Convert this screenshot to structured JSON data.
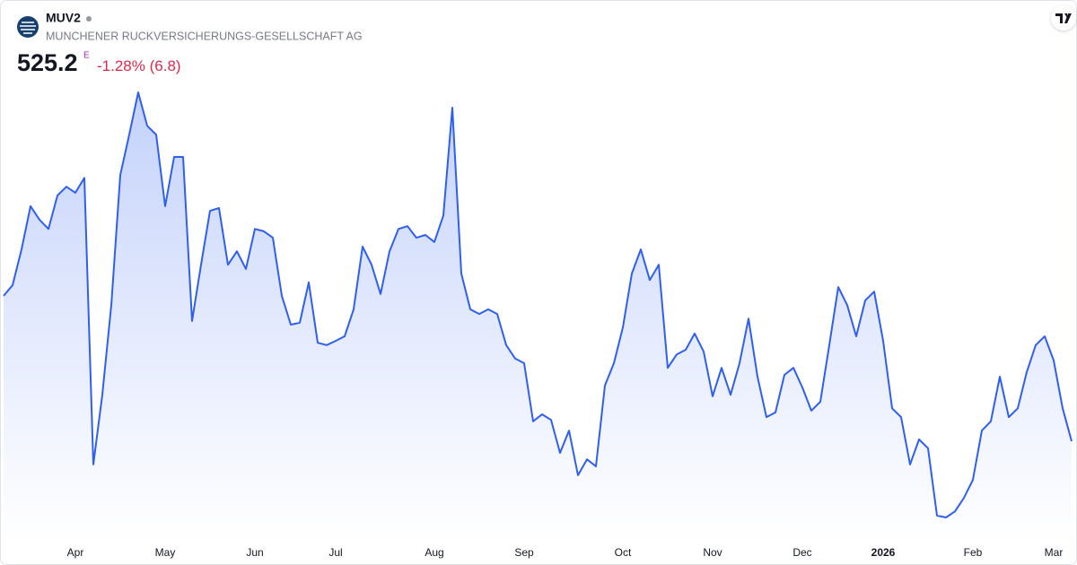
{
  "header": {
    "symbol": "MUV2",
    "name": "MUNCHENER RUCKVERSICHERUNGS-GESELLSCHAFT AG",
    "price": "525.2",
    "price_flag": "E",
    "change_pct": "-1.28%",
    "change_abs": "(6.8)"
  },
  "chart_data": {
    "type": "line",
    "color": "#2f5ff0",
    "categories": [
      null,
      null,
      null,
      null,
      null,
      null,
      null,
      null,
      "Apr",
      null,
      null,
      null,
      null,
      null,
      null,
      null,
      null,
      null,
      "May",
      null,
      null,
      null,
      null,
      null,
      null,
      null,
      null,
      null,
      "Jun",
      null,
      null,
      null,
      null,
      null,
      null,
      null,
      null,
      "Jul",
      null,
      null,
      null,
      null,
      null,
      null,
      null,
      null,
      null,
      null,
      "Aug",
      null,
      null,
      null,
      null,
      null,
      null,
      null,
      null,
      null,
      "Sep",
      null,
      null,
      null,
      null,
      null,
      null,
      null,
      null,
      null,
      null,
      "Oct",
      null,
      null,
      null,
      null,
      null,
      null,
      null,
      null,
      null,
      "Nov",
      null,
      null,
      null,
      null,
      null,
      null,
      null,
      null,
      null,
      "Dec",
      null,
      null,
      null,
      null,
      null,
      null,
      null,
      null,
      "2026",
      null,
      null,
      null,
      null,
      null,
      null,
      null,
      null,
      null,
      "Feb",
      null,
      null,
      null,
      null,
      null,
      null,
      null,
      null,
      "Mar",
      null,
      null
    ],
    "values": [
      556.5,
      558.8,
      566.5,
      575.8,
      572.9,
      570.9,
      578.1,
      580.0,
      578.7,
      581.9,
      520.2,
      535.2,
      554.5,
      582.5,
      591.2,
      600.3,
      593.1,
      591.2,
      575.8,
      586.4,
      586.4,
      551.1,
      563.2,
      574.8,
      575.4,
      563.2,
      566.1,
      562.3,
      570.9,
      570.4,
      569.0,
      556.5,
      550.3,
      550.7,
      559.4,
      546.4,
      545.9,
      546.8,
      547.8,
      553.6,
      567.1,
      563.2,
      556.9,
      566.1,
      570.9,
      571.5,
      569.0,
      569.6,
      568.1,
      573.8,
      597.0,
      561.3,
      553.6,
      552.6,
      553.6,
      552.6,
      545.9,
      543.0,
      542.0,
      529.5,
      531.0,
      529.8,
      522.7,
      527.5,
      517.9,
      521.3,
      519.8,
      537.2,
      542.0,
      549.7,
      561.3,
      566.5,
      559.9,
      563.2,
      541.0,
      543.9,
      544.9,
      548.4,
      544.5,
      534.9,
      541.0,
      535.2,
      542.0,
      551.6,
      539.1,
      530.4,
      531.4,
      539.5,
      541.0,
      536.8,
      531.8,
      533.7,
      545.9,
      558.4,
      554.5,
      547.8,
      555.5,
      557.4,
      546.8,
      532.3,
      530.4,
      520.2,
      525.6,
      523.7,
      509.2,
      508.8,
      510.1,
      513.0,
      516.9,
      527.5,
      529.5,
      539.1,
      530.4,
      532.3,
      540.1,
      545.9,
      547.8,
      542.6,
      532.3,
      525.2
    ]
  }
}
